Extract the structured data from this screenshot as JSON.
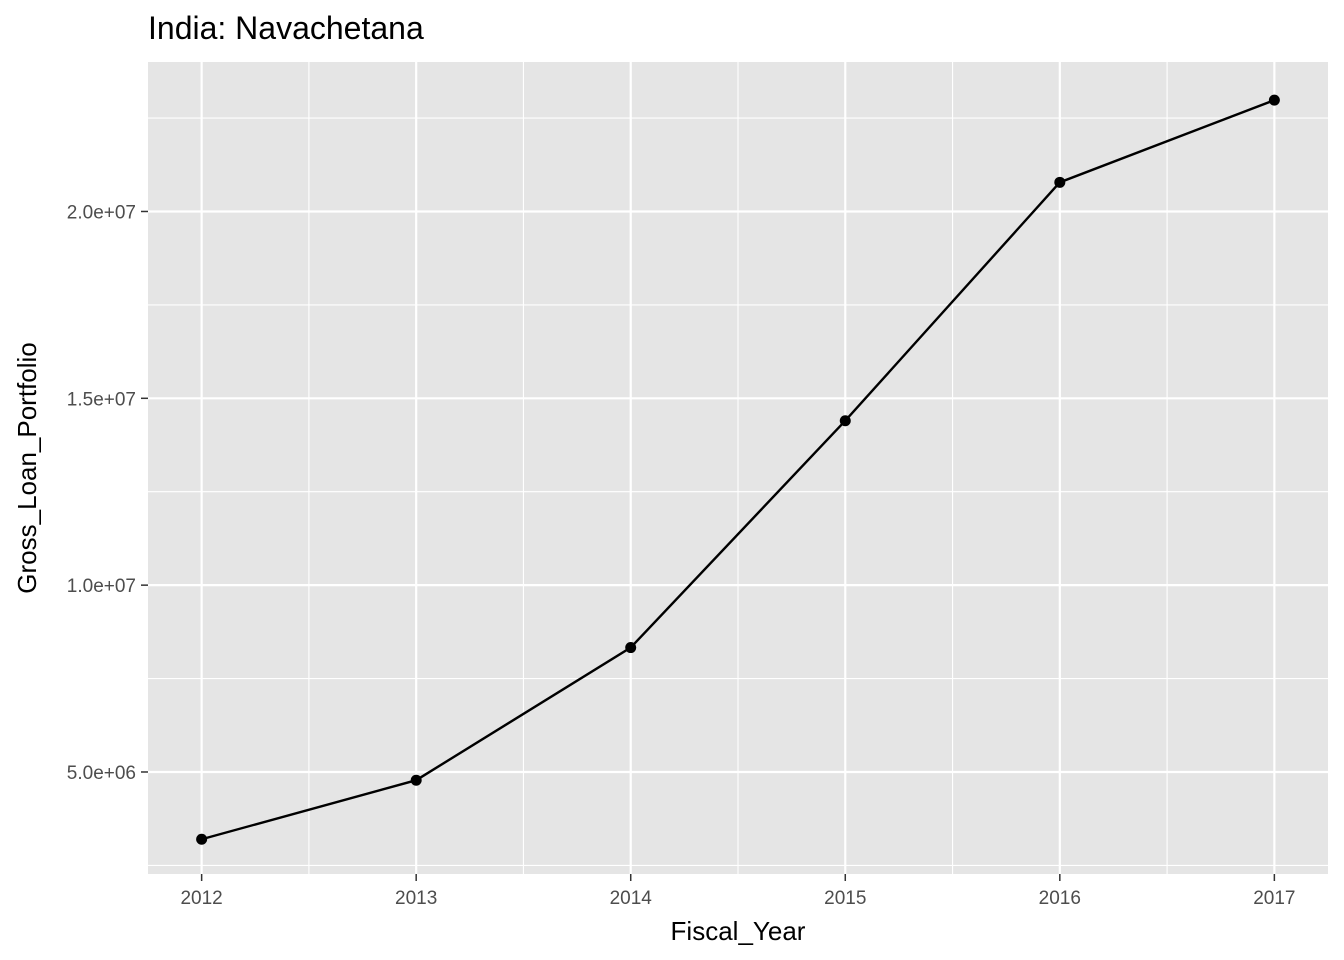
{
  "chart_data": {
    "type": "line",
    "title": "India:  Navachetana",
    "xlabel": "Fiscal_Year",
    "ylabel": "Gross_Loan_Portfolio",
    "x": [
      2012,
      2013,
      2014,
      2015,
      2016,
      2017
    ],
    "x_tick_labels": [
      "2012",
      "2013",
      "2014",
      "2015",
      "2016",
      "2017"
    ],
    "y_tick_labels": [
      "5.0e+06",
      "1.0e+07",
      "1.5e+07",
      "2.0e+07"
    ],
    "y_ticks": [
      5000000,
      10000000,
      15000000,
      20000000
    ],
    "series": [
      {
        "values": [
          3200000,
          4780000,
          8330000,
          14400000,
          20780000,
          22980000
        ]
      }
    ],
    "xlim": [
      2011.75,
      2017.25
    ],
    "ylim": [
      2270000,
      24000000
    ],
    "grid": true,
    "colors": {
      "panel": "#e5e5e5",
      "grid": "#ffffff",
      "line": "#000000",
      "point": "#000000"
    }
  }
}
